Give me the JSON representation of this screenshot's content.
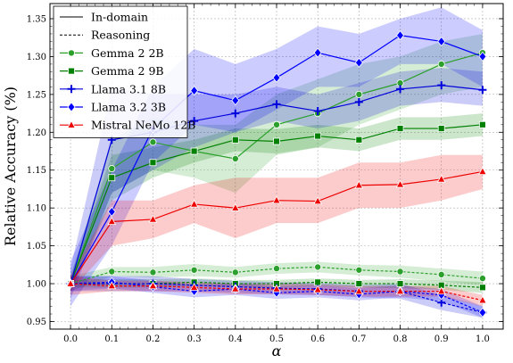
{
  "chart_data": {
    "type": "line",
    "xlabel": "α",
    "ylabel": "Relative Accuracy (%)",
    "xlim": [
      -0.05,
      1.05
    ],
    "ylim": [
      0.94,
      1.37
    ],
    "x": [
      0.0,
      0.1,
      0.2,
      0.3,
      0.4,
      0.5,
      0.6,
      0.7,
      0.8,
      0.9,
      1.0
    ],
    "x_ticks": [
      "0.0",
      "0.1",
      "0.2",
      "0.3",
      "0.4",
      "0.5",
      "0.6",
      "0.7",
      "0.8",
      "0.9",
      "1.0"
    ],
    "y_ticks": [
      "0.95",
      "1.00",
      "1.05",
      "1.10",
      "1.15",
      "1.20",
      "1.25",
      "1.30",
      "1.35"
    ],
    "y_tick_values": [
      0.95,
      1.0,
      1.05,
      1.1,
      1.15,
      1.2,
      1.25,
      1.3,
      1.35
    ],
    "grid": true,
    "legend_position": "top-left",
    "line_styles": [
      {
        "label": "In-domain",
        "dash": "solid"
      },
      {
        "label": "Reasoning",
        "dash": "dashed"
      }
    ],
    "series": [
      {
        "name": "Gemma 2 2B",
        "color": "#2ca02c",
        "marker": "circle",
        "in_domain": [
          1.0,
          1.152,
          1.187,
          1.175,
          1.165,
          1.21,
          1.225,
          1.25,
          1.265,
          1.29,
          1.305
        ],
        "in_domain_band": [
          [
            0.99,
            1.01
          ],
          [
            1.12,
            1.19
          ],
          [
            1.15,
            1.22
          ],
          [
            1.14,
            1.21
          ],
          [
            1.12,
            1.21
          ],
          [
            1.17,
            1.25
          ],
          [
            1.18,
            1.27
          ],
          [
            1.21,
            1.29
          ],
          [
            1.23,
            1.3
          ],
          [
            1.25,
            1.32
          ],
          [
            1.26,
            1.33
          ]
        ],
        "reasoning": [
          1.0,
          1.016,
          1.015,
          1.018,
          1.015,
          1.02,
          1.022,
          1.018,
          1.016,
          1.012,
          1.007
        ],
        "reasoning_band": [
          [
            0.99,
            1.01
          ],
          [
            1.01,
            1.022
          ],
          [
            1.008,
            1.022
          ],
          [
            1.01,
            1.026
          ],
          [
            1.008,
            1.022
          ],
          [
            1.013,
            1.027
          ],
          [
            1.015,
            1.029
          ],
          [
            1.011,
            1.025
          ],
          [
            1.008,
            1.024
          ],
          [
            1.003,
            1.02
          ],
          [
            0.998,
            1.016
          ]
        ]
      },
      {
        "name": "Gemma 2 9B",
        "color": "#008000",
        "marker": "square",
        "in_domain": [
          1.0,
          1.14,
          1.16,
          1.175,
          1.19,
          1.188,
          1.195,
          1.19,
          1.205,
          1.205,
          1.21
        ],
        "in_domain_band": [
          [
            0.99,
            1.01
          ],
          [
            1.11,
            1.17
          ],
          [
            1.14,
            1.18
          ],
          [
            1.16,
            1.19
          ],
          [
            1.175,
            1.205
          ],
          [
            1.172,
            1.204
          ],
          [
            1.18,
            1.21
          ],
          [
            1.175,
            1.205
          ],
          [
            1.19,
            1.22
          ],
          [
            1.19,
            1.22
          ],
          [
            1.195,
            1.225
          ]
        ],
        "reasoning": [
          1.0,
          1.0,
          1.0,
          1.002,
          1.0,
          1.0,
          1.002,
          1.0,
          1.0,
          0.998,
          0.995
        ],
        "reasoning_band": [
          [
            0.995,
            1.005
          ],
          [
            0.995,
            1.006
          ],
          [
            0.995,
            1.006
          ],
          [
            0.997,
            1.007
          ],
          [
            0.995,
            1.005
          ],
          [
            0.995,
            1.005
          ],
          [
            0.997,
            1.007
          ],
          [
            0.995,
            1.005
          ],
          [
            0.994,
            1.006
          ],
          [
            0.992,
            1.004
          ],
          [
            0.988,
            1.002
          ]
        ]
      },
      {
        "name": "Llama 3.1 8B",
        "color": "#0000dd",
        "marker": "plus",
        "in_domain": [
          1.0,
          1.19,
          1.2,
          1.215,
          1.225,
          1.237,
          1.228,
          1.24,
          1.257,
          1.262,
          1.256
        ],
        "in_domain_band": [
          [
            0.98,
            1.02
          ],
          [
            1.12,
            1.26
          ],
          [
            1.15,
            1.25
          ],
          [
            1.18,
            1.25
          ],
          [
            1.2,
            1.25
          ],
          [
            1.215,
            1.26
          ],
          [
            1.205,
            1.25
          ],
          [
            1.215,
            1.265
          ],
          [
            1.235,
            1.28
          ],
          [
            1.24,
            1.285
          ],
          [
            1.235,
            1.28
          ]
        ],
        "reasoning": [
          1.0,
          1.0,
          1.0,
          0.998,
          0.996,
          0.994,
          0.993,
          0.99,
          0.99,
          0.975,
          0.962
        ],
        "reasoning_band": [
          [
            0.99,
            1.01
          ],
          [
            0.99,
            1.01
          ],
          [
            0.99,
            1.01
          ],
          [
            0.99,
            1.006
          ],
          [
            0.988,
            1.004
          ],
          [
            0.986,
            1.002
          ],
          [
            0.985,
            1.001
          ],
          [
            0.982,
            0.998
          ],
          [
            0.98,
            1.0
          ],
          [
            0.965,
            0.985
          ],
          [
            0.955,
            0.97
          ]
        ]
      },
      {
        "name": "Llama 3.2 3B",
        "color": "#0000ff",
        "marker": "diamond",
        "in_domain": [
          1.0,
          1.095,
          1.205,
          1.255,
          1.242,
          1.272,
          1.305,
          1.292,
          1.328,
          1.32,
          1.3
        ],
        "in_domain_band": [
          [
            0.97,
            1.03
          ],
          [
            1.05,
            1.15
          ],
          [
            1.16,
            1.26
          ],
          [
            1.21,
            1.31
          ],
          [
            1.2,
            1.29
          ],
          [
            1.23,
            1.31
          ],
          [
            1.26,
            1.34
          ],
          [
            1.26,
            1.33
          ],
          [
            1.29,
            1.35
          ],
          [
            1.29,
            1.365
          ],
          [
            1.26,
            1.335
          ]
        ],
        "reasoning": [
          1.0,
          1.002,
          0.996,
          0.99,
          0.993,
          0.988,
          0.99,
          0.986,
          0.99,
          0.985,
          0.962
        ],
        "reasoning_band": [
          [
            0.99,
            1.01
          ],
          [
            0.994,
            1.01
          ],
          [
            0.988,
            1.004
          ],
          [
            0.982,
            0.998
          ],
          [
            0.985,
            1.001
          ],
          [
            0.98,
            0.996
          ],
          [
            0.982,
            0.998
          ],
          [
            0.978,
            0.994
          ],
          [
            0.982,
            0.998
          ],
          [
            0.977,
            0.993
          ],
          [
            0.955,
            0.97
          ]
        ]
      },
      {
        "name": "Mistral NeMo 12B",
        "color": "#ee0000",
        "marker": "triangle",
        "in_domain": [
          1.0,
          1.082,
          1.085,
          1.105,
          1.1,
          1.11,
          1.109,
          1.13,
          1.131,
          1.138,
          1.148
        ],
        "in_domain_band": [
          [
            0.99,
            1.01
          ],
          [
            1.05,
            1.11
          ],
          [
            1.06,
            1.11
          ],
          [
            1.08,
            1.13
          ],
          [
            1.06,
            1.14
          ],
          [
            1.08,
            1.14
          ],
          [
            1.08,
            1.14
          ],
          [
            1.1,
            1.16
          ],
          [
            1.1,
            1.16
          ],
          [
            1.11,
            1.17
          ],
          [
            1.125,
            1.17
          ]
        ],
        "reasoning": [
          1.0,
          0.997,
          0.997,
          0.995,
          0.993,
          0.993,
          0.992,
          0.99,
          0.99,
          0.99,
          0.978
        ],
        "reasoning_band": [
          [
            0.985,
            1.01
          ],
          [
            0.99,
            1.004
          ],
          [
            0.99,
            1.004
          ],
          [
            0.988,
            1.002
          ],
          [
            0.986,
            1.0
          ],
          [
            0.986,
            1.0
          ],
          [
            0.985,
            0.999
          ],
          [
            0.983,
            0.997
          ],
          [
            0.983,
            0.997
          ],
          [
            0.983,
            0.997
          ],
          [
            0.97,
            0.985
          ]
        ]
      }
    ]
  }
}
